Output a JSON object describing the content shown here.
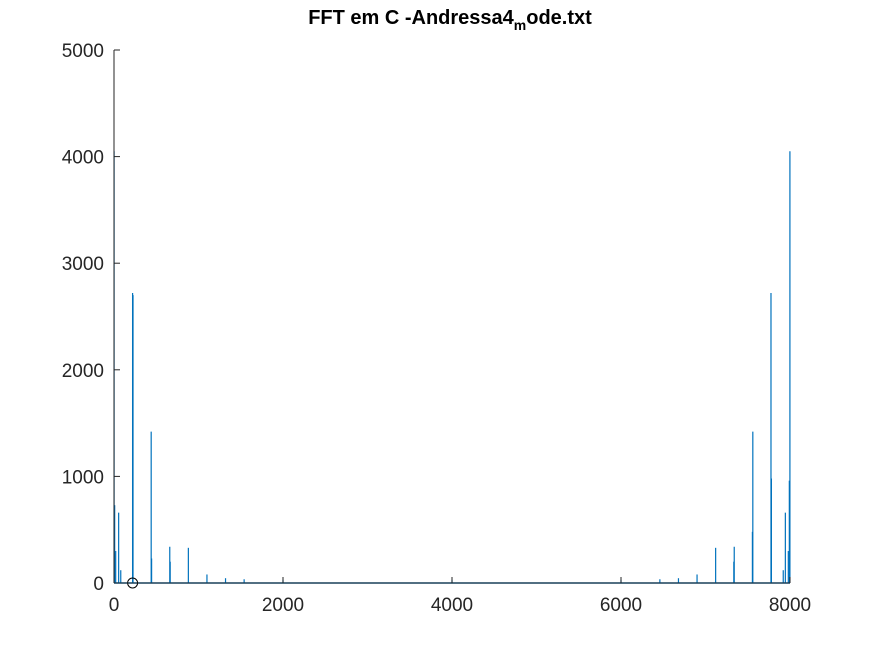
{
  "chart_data": {
    "type": "line",
    "title_parts": {
      "before": "FFT em C -Andressa4",
      "subscript": "m",
      "after": "ode.txt"
    },
    "xlabel": "",
    "ylabel": "",
    "xlim": [
      0,
      8000
    ],
    "ylim": [
      0,
      5000
    ],
    "xticks": [
      0,
      2000,
      4000,
      6000,
      8000
    ],
    "yticks": [
      0,
      1000,
      2000,
      3000,
      4000,
      5000
    ],
    "xtick_labels": [
      "0",
      "2000",
      "4000",
      "6000",
      "8000"
    ],
    "ytick_labels": [
      "0",
      "1000",
      "2000",
      "3000",
      "4000",
      "5000"
    ],
    "grid": false,
    "series": [
      {
        "color": "#0072bd",
        "peaks": [
          {
            "x": 1,
            "y": 4050
          },
          {
            "x": 8,
            "y": 730
          },
          {
            "x": 20,
            "y": 300
          },
          {
            "x": 55,
            "y": 660
          },
          {
            "x": 80,
            "y": 120
          },
          {
            "x": 220,
            "y": 2720
          },
          {
            "x": 225,
            "y": 2700
          },
          {
            "x": 440,
            "y": 1420
          },
          {
            "x": 445,
            "y": 230
          },
          {
            "x": 660,
            "y": 340
          },
          {
            "x": 665,
            "y": 200
          },
          {
            "x": 880,
            "y": 330
          },
          {
            "x": 1100,
            "y": 80
          },
          {
            "x": 1320,
            "y": 45
          },
          {
            "x": 1540,
            "y": 35
          },
          {
            "x": 2000,
            "y": 30
          },
          {
            "x": 4000,
            "y": 30
          },
          {
            "x": 6000,
            "y": 30
          },
          {
            "x": 6460,
            "y": 35
          },
          {
            "x": 6680,
            "y": 45
          },
          {
            "x": 6900,
            "y": 80
          },
          {
            "x": 7120,
            "y": 330
          },
          {
            "x": 7335,
            "y": 200
          },
          {
            "x": 7340,
            "y": 340
          },
          {
            "x": 7555,
            "y": 480
          },
          {
            "x": 7560,
            "y": 1420
          },
          {
            "x": 7775,
            "y": 2720
          },
          {
            "x": 7780,
            "y": 980
          },
          {
            "x": 7920,
            "y": 120
          },
          {
            "x": 7945,
            "y": 660
          },
          {
            "x": 7980,
            "y": 300
          },
          {
            "x": 7992,
            "y": 960
          },
          {
            "x": 7999,
            "y": 4050
          }
        ]
      }
    ],
    "marker": {
      "shape": "circle",
      "x": 220,
      "y": 0,
      "color": "#000000"
    }
  }
}
